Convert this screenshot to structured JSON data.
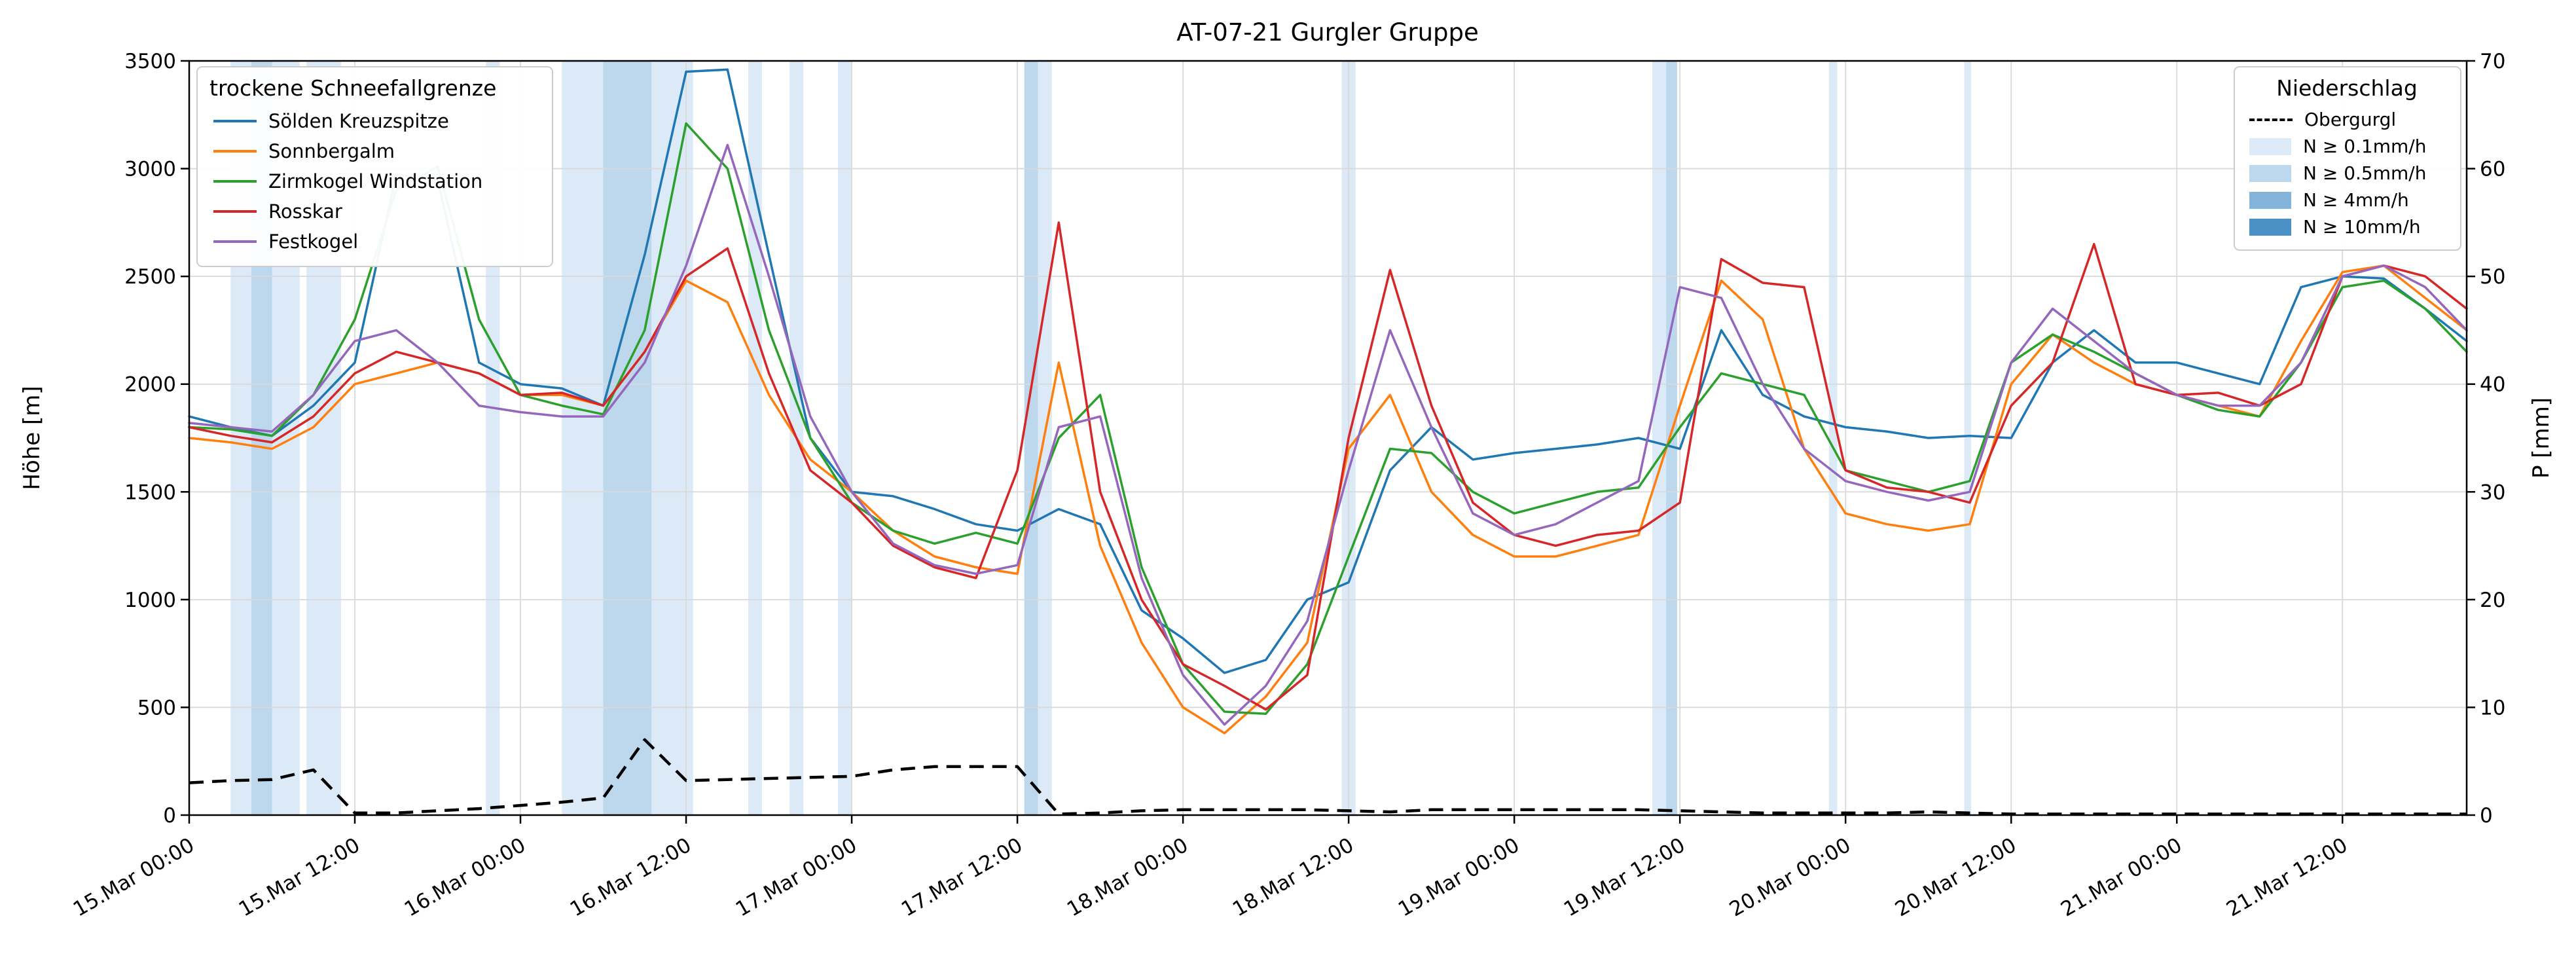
{
  "title": "AT-07-21 Gurgler Gruppe",
  "axes": {
    "y_left": {
      "label": "Höhe [m]",
      "min": 0,
      "max": 3500,
      "ticks": [
        "0",
        "500",
        "1000",
        "1500",
        "2000",
        "2500",
        "3000",
        "3500"
      ]
    },
    "y_right": {
      "label": "P [mm]",
      "min": 0,
      "max": 70,
      "ticks": [
        "0",
        "10",
        "20",
        "30",
        "40",
        "50",
        "60",
        "70"
      ]
    },
    "x": {
      "ticks": [
        {
          "hour": 0,
          "label": "15.Mar 00:00"
        },
        {
          "hour": 12,
          "label": "15.Mar 12:00"
        },
        {
          "hour": 24,
          "label": "16.Mar 00:00"
        },
        {
          "hour": 36,
          "label": "16.Mar 12:00"
        },
        {
          "hour": 48,
          "label": "17.Mar 00:00"
        },
        {
          "hour": 60,
          "label": "17.Mar 12:00"
        },
        {
          "hour": 72,
          "label": "18.Mar 00:00"
        },
        {
          "hour": 84,
          "label": "18.Mar 12:00"
        },
        {
          "hour": 96,
          "label": "19.Mar 00:00"
        },
        {
          "hour": 108,
          "label": "19.Mar 12:00"
        },
        {
          "hour": 120,
          "label": "20.Mar 00:00"
        },
        {
          "hour": 132,
          "label": "20.Mar 12:00"
        },
        {
          "hour": 144,
          "label": "21.Mar 00:00"
        },
        {
          "hour": 156,
          "label": "21.Mar 12:00"
        }
      ]
    }
  },
  "legend_snowline": {
    "title": "trockene Schneefallgrenze",
    "items": [
      {
        "label": "Sölden Kreuzspitze",
        "color": "#1f77b4"
      },
      {
        "label": "Sonnbergalm",
        "color": "#ff7f0e"
      },
      {
        "label": "Zirmkogel Windstation",
        "color": "#2ca02c"
      },
      {
        "label": "Rosskar",
        "color": "#d62728"
      },
      {
        "label": "Festkogel",
        "color": "#9467bd"
      }
    ]
  },
  "legend_precip": {
    "title": "Niederschlag",
    "items": [
      {
        "label": "Obergurgl",
        "type": "dashed-line",
        "color": "#000000"
      },
      {
        "label": "N ≥ 0.1mm/h",
        "type": "band",
        "color": "#dce9f6"
      },
      {
        "label": "N ≥ 0.5mm/h",
        "type": "band",
        "color": "#bdd7ec"
      },
      {
        "label": "N ≥ 4mm/h",
        "type": "band",
        "color": "#85b4da"
      },
      {
        "label": "N ≥ 10mm/h",
        "type": "band",
        "color": "#4a90c4"
      }
    ]
  },
  "chart_data": {
    "type": "line",
    "title": "AT-07-21 Gurgler Gruppe",
    "xlabel": "",
    "ylabel_left": "Höhe [m]",
    "ylabel_right": "P [mm]",
    "x_time_origin": "15.Mar 00:00",
    "x_end_hour": 165,
    "ylim_left": [
      0,
      3500
    ],
    "ylim_right": [
      0,
      70
    ],
    "grid": true,
    "legend_positions": [
      "upper left",
      "upper right"
    ],
    "x_hours": [
      0,
      3,
      6,
      9,
      12,
      15,
      18,
      21,
      24,
      27,
      30,
      33,
      36,
      39,
      42,
      45,
      48,
      51,
      54,
      57,
      60,
      63,
      66,
      69,
      72,
      75,
      78,
      81,
      84,
      87,
      90,
      93,
      96,
      99,
      102,
      105,
      108,
      111,
      114,
      117,
      120,
      123,
      126,
      129,
      132,
      135,
      138,
      141,
      144,
      147,
      150,
      153,
      156,
      159,
      162,
      165
    ],
    "series": [
      {
        "name": "Sölden Kreuzspitze",
        "color": "#1f77b4",
        "axis": "left",
        "unit": "m",
        "values": [
          1850,
          1800,
          1760,
          1900,
          2100,
          2970,
          2950,
          2100,
          2000,
          1980,
          1900,
          2600,
          3450,
          3460,
          2600,
          1750,
          1500,
          1480,
          1420,
          1350,
          1320,
          1420,
          1350,
          950,
          820,
          660,
          720,
          1000,
          1080,
          1600,
          1800,
          1650,
          1680,
          1700,
          1720,
          1750,
          1700,
          2250,
          1950,
          1850,
          1800,
          1780,
          1750,
          1760,
          1750,
          2100,
          2250,
          2100,
          2100,
          2050,
          2000,
          2450,
          2500,
          2490,
          2350,
          2200
        ]
      },
      {
        "name": "Sonnbergalm",
        "color": "#ff7f0e",
        "axis": "left",
        "unit": "m",
        "values": [
          1750,
          1730,
          1700,
          1800,
          2000,
          2050,
          2100,
          2050,
          1950,
          1950,
          1900,
          2150,
          2480,
          2380,
          1950,
          1650,
          1500,
          1320,
          1200,
          1150,
          1120,
          2100,
          1250,
          800,
          500,
          380,
          550,
          800,
          1700,
          1950,
          1500,
          1300,
          1200,
          1200,
          1250,
          1300,
          1900,
          2480,
          2300,
          1700,
          1400,
          1350,
          1320,
          1350,
          2000,
          2230,
          2100,
          2000,
          1950,
          1900,
          1850,
          2200,
          2520,
          2550,
          2400,
          2250
        ]
      },
      {
        "name": "Zirmkogel Windstation",
        "color": "#2ca02c",
        "axis": "left",
        "unit": "m",
        "values": [
          1800,
          1790,
          1760,
          1950,
          2300,
          2900,
          3010,
          2300,
          1950,
          1900,
          1860,
          2250,
          3210,
          3000,
          2250,
          1750,
          1450,
          1320,
          1260,
          1310,
          1260,
          1750,
          1950,
          1150,
          700,
          480,
          470,
          700,
          1200,
          1700,
          1680,
          1500,
          1400,
          1450,
          1500,
          1520,
          1800,
          2050,
          2000,
          1950,
          1600,
          1550,
          1500,
          1550,
          2100,
          2230,
          2150,
          2050,
          1950,
          1880,
          1850,
          2100,
          2450,
          2480,
          2350,
          2150
        ]
      },
      {
        "name": "Rosskar",
        "color": "#d62728",
        "axis": "left",
        "unit": "m",
        "values": [
          1800,
          1760,
          1730,
          1850,
          2050,
          2150,
          2100,
          2050,
          1950,
          1960,
          1900,
          2150,
          2500,
          2630,
          2050,
          1600,
          1450,
          1250,
          1150,
          1100,
          1600,
          2750,
          1500,
          1000,
          700,
          600,
          490,
          650,
          1750,
          2530,
          1900,
          1450,
          1300,
          1250,
          1300,
          1320,
          1450,
          2580,
          2470,
          2450,
          1600,
          1520,
          1500,
          1450,
          1900,
          2100,
          2650,
          2000,
          1950,
          1960,
          1900,
          2000,
          2500,
          2550,
          2500,
          2350
        ]
      },
      {
        "name": "Festkogel",
        "color": "#9467bd",
        "axis": "left",
        "unit": "m",
        "values": [
          1820,
          1800,
          1780,
          1950,
          2200,
          2250,
          2100,
          1900,
          1870,
          1850,
          1850,
          2100,
          2550,
          3110,
          2500,
          1850,
          1500,
          1260,
          1160,
          1120,
          1160,
          1800,
          1850,
          1100,
          650,
          420,
          600,
          900,
          1600,
          2250,
          1800,
          1400,
          1300,
          1350,
          1450,
          1550,
          2450,
          2400,
          2000,
          1700,
          1550,
          1500,
          1460,
          1500,
          2100,
          2350,
          2200,
          2050,
          1950,
          1900,
          1900,
          2100,
          2500,
          2550,
          2450,
          2250
        ]
      }
    ],
    "precip_series": {
      "name": "Obergurgl",
      "color": "#000000",
      "style": "dashed",
      "axis": "right",
      "unit": "mm",
      "values": [
        3.0,
        3.2,
        3.3,
        4.2,
        0.2,
        0.2,
        0.4,
        0.6,
        0.9,
        1.2,
        1.6,
        7.0,
        3.2,
        3.3,
        3.4,
        3.5,
        3.6,
        4.2,
        4.5,
        4.5,
        4.5,
        0.1,
        0.2,
        0.4,
        0.5,
        0.5,
        0.5,
        0.5,
        0.4,
        0.3,
        0.5,
        0.5,
        0.5,
        0.5,
        0.5,
        0.5,
        0.4,
        0.3,
        0.2,
        0.2,
        0.2,
        0.2,
        0.3,
        0.2,
        0.1,
        0.1,
        0.1,
        0.1,
        0.1,
        0.1,
        0.1,
        0.1,
        0.1,
        0.1,
        0.1,
        0.1
      ]
    },
    "band_colors": {
      "0.1": "#dce9f6",
      "0.5": "#bdd7ec",
      "4": "#85b4da",
      "10": "#4a90c4"
    },
    "precip_bands": [
      {
        "start": 3,
        "end": 4.5,
        "level": "0.1"
      },
      {
        "start": 4.5,
        "end": 6,
        "level": "0.5"
      },
      {
        "start": 6,
        "end": 8,
        "level": "0.1"
      },
      {
        "start": 8.5,
        "end": 11,
        "level": "0.1"
      },
      {
        "start": 21.5,
        "end": 22.5,
        "level": "0.1"
      },
      {
        "start": 27,
        "end": 30,
        "level": "0.1"
      },
      {
        "start": 30,
        "end": 33.5,
        "level": "0.5"
      },
      {
        "start": 33.5,
        "end": 36.5,
        "level": "0.1"
      },
      {
        "start": 40.5,
        "end": 41.5,
        "level": "0.1"
      },
      {
        "start": 43.5,
        "end": 44.5,
        "level": "0.1"
      },
      {
        "start": 47,
        "end": 48,
        "level": "0.1"
      },
      {
        "start": 60.5,
        "end": 61.5,
        "level": "0.5"
      },
      {
        "start": 61.5,
        "end": 62.5,
        "level": "0.1"
      },
      {
        "start": 83.5,
        "end": 84.5,
        "level": "0.1"
      },
      {
        "start": 106,
        "end": 107,
        "level": "0.1"
      },
      {
        "start": 107,
        "end": 107.8,
        "level": "0.5"
      },
      {
        "start": 118.8,
        "end": 119.4,
        "level": "0.1"
      },
      {
        "start": 128.6,
        "end": 129.1,
        "level": "0.1"
      }
    ]
  }
}
